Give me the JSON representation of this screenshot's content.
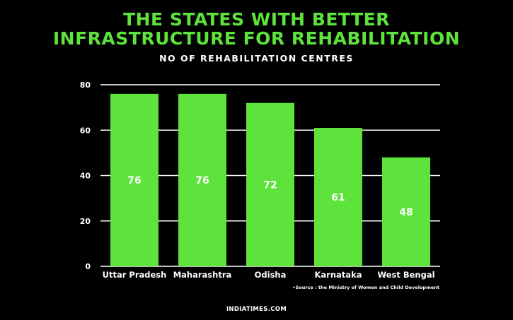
{
  "header": {
    "title_line1": "THE STATES WITH BETTER",
    "title_line2": "INFRASTRUCTURE FOR REHABILITATION"
  },
  "chart_data": {
    "type": "bar",
    "title": "THE STATES WITH BETTER INFRASTRUCTURE FOR REHABILITATION",
    "subtitle": "NO OF REHABILITATION CENTRES",
    "categories": [
      "Uttar Pradesh",
      "Maharashtra",
      "Odisha",
      "Karnataka",
      "West Bengal"
    ],
    "values": [
      76,
      76,
      72,
      61,
      48
    ],
    "data_labels": [
      "76",
      "76",
      "72",
      "61",
      "48"
    ],
    "yticks": [
      0,
      20,
      40,
      60,
      80
    ],
    "ylim": [
      0,
      80
    ],
    "xlabel": "",
    "ylabel": "",
    "grid": true,
    "bar_color": "#5de33b",
    "background": "#000000"
  },
  "footer": {
    "source": "•Source : the Ministry of Women and Child Development",
    "brand": "INDIATIMES.COM"
  }
}
